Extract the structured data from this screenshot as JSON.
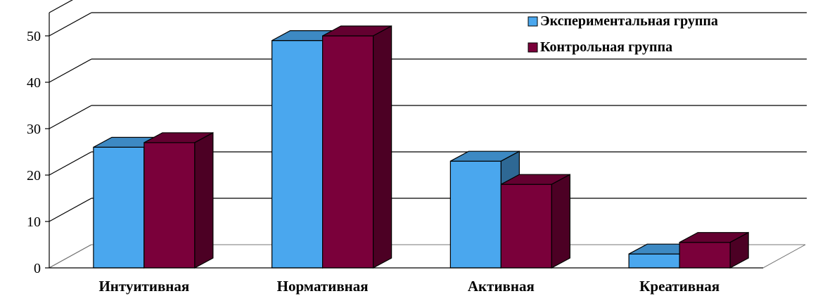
{
  "chart_data": {
    "type": "bar",
    "categories": [
      "Интуитивная",
      "Нормативная",
      "Активная",
      "Креативная"
    ],
    "series": [
      {
        "name": "Экспериментальная группа",
        "values": [
          26,
          49,
          23,
          3
        ],
        "color": "#4aa7ee"
      },
      {
        "name": "Контрольная группа",
        "values": [
          27,
          50,
          18,
          5.5
        ],
        "color": "#7a003a"
      }
    ],
    "yticks": [
      0,
      10,
      20,
      30,
      40,
      50
    ],
    "ylim": [
      0,
      55
    ],
    "grid": true,
    "legend": "top-right",
    "style": "3d-clustered-column"
  }
}
